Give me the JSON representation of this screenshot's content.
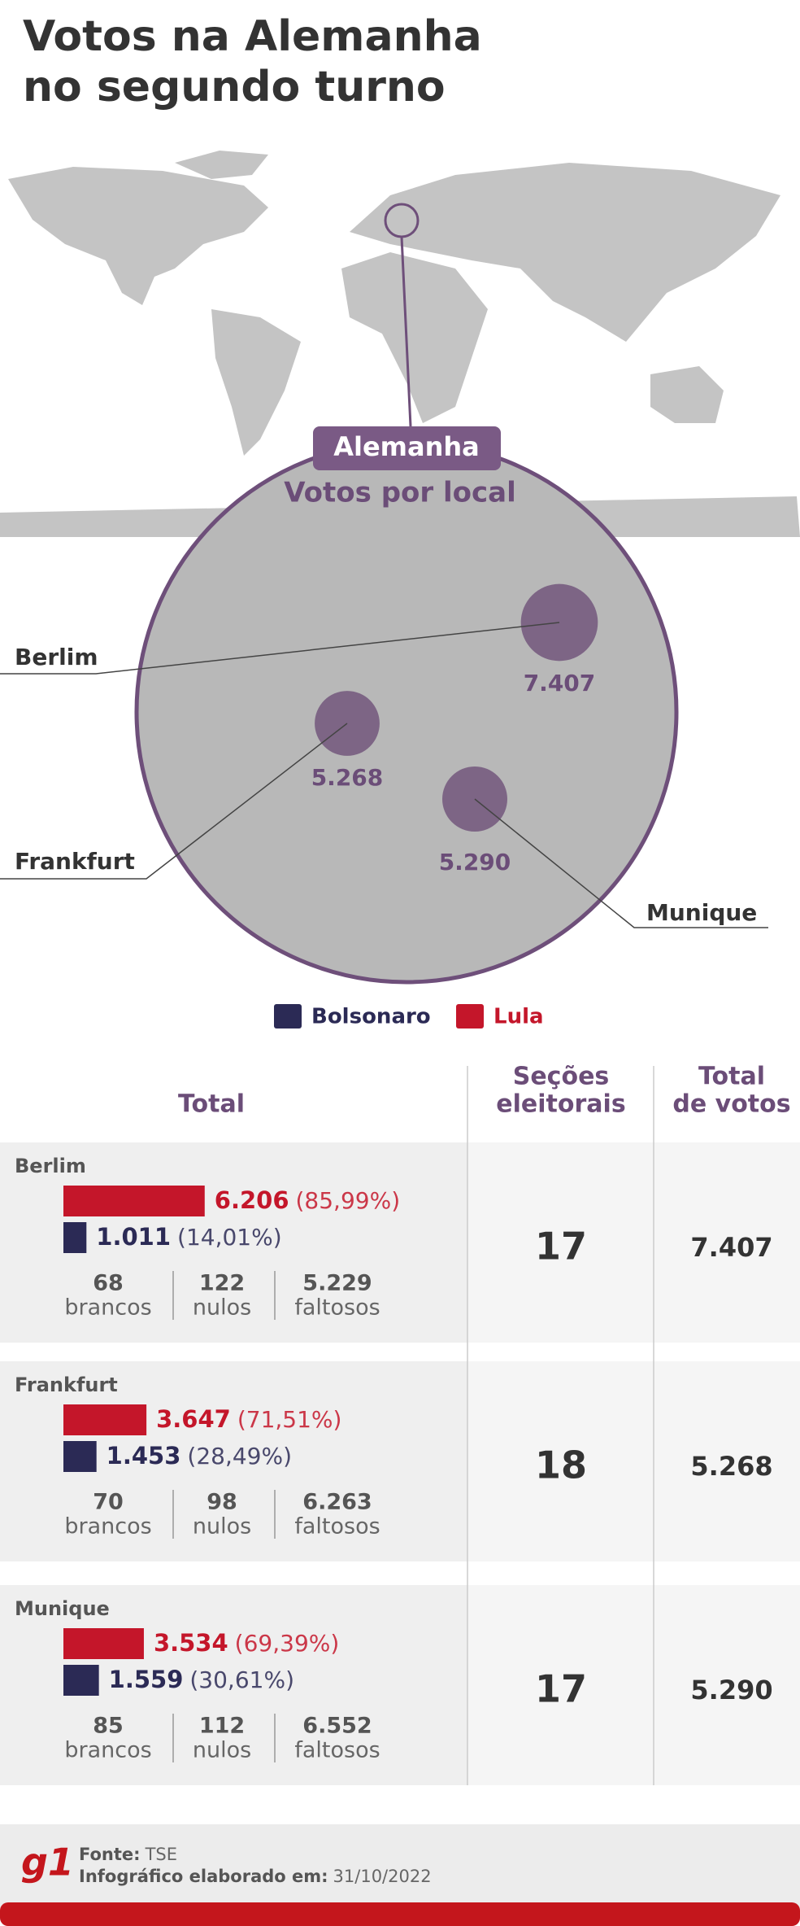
{
  "title_lines": [
    "Votos na Alemanha",
    "no segundo turno"
  ],
  "map": {
    "country": "Alemanha",
    "subtitle": "Votos por local",
    "cities": [
      {
        "name": "Berlim",
        "total": {
          "value": 7407,
          "label": "7.407"
        }
      },
      {
        "name": "Frankfurt",
        "total": {
          "value": 5268,
          "label": "5.268"
        }
      },
      {
        "name": "Munique",
        "total": {
          "value": 5290,
          "label": "5.290"
        }
      }
    ]
  },
  "legend": [
    {
      "name": "Bolsonaro",
      "color": "#2b2a55"
    },
    {
      "name": "Lula",
      "color": "#c4162a"
    }
  ],
  "table": {
    "headers": {
      "total": "Total",
      "secoes": [
        "Seções",
        "eleitorais"
      ],
      "votos": [
        "Total",
        "de votos"
      ]
    },
    "stat_labels": [
      "brancos",
      "nulos",
      "faltosos"
    ],
    "rows": [
      {
        "city": "Berlim",
        "lula": {
          "value": 6206,
          "label": "6.206"
        },
        "lula_pct": "(85,99%)",
        "bolsonaro": {
          "value": 1011,
          "label": "1.011"
        },
        "bolsonaro_pct": "(14,01%)",
        "stats": [
          "68",
          "122",
          "5.229"
        ],
        "secoes": "17",
        "total": "7.407"
      },
      {
        "city": "Frankfurt",
        "lula": {
          "value": 3647,
          "label": "3.647"
        },
        "lula_pct": "(71,51%)",
        "bolsonaro": {
          "value": 1453,
          "label": "1.453"
        },
        "bolsonaro_pct": "(28,49%)",
        "stats": [
          "70",
          "98",
          "6.263"
        ],
        "secoes": "18",
        "total": "5.268"
      },
      {
        "city": "Munique",
        "lula": {
          "value": 3534,
          "label": "3.534"
        },
        "lula_pct": "(69,39%)",
        "bolsonaro": {
          "value": 1559,
          "label": "1.559"
        },
        "bolsonaro_pct": "(30,61%)",
        "stats": [
          "85",
          "112",
          "6.552"
        ],
        "secoes": "17",
        "total": "5.290"
      }
    ]
  },
  "footer": {
    "logo": "g1",
    "source_label": "Fonte:",
    "source": "TSE",
    "date_label": "Infográfico elaborado em:",
    "date": "31/10/2022"
  }
}
